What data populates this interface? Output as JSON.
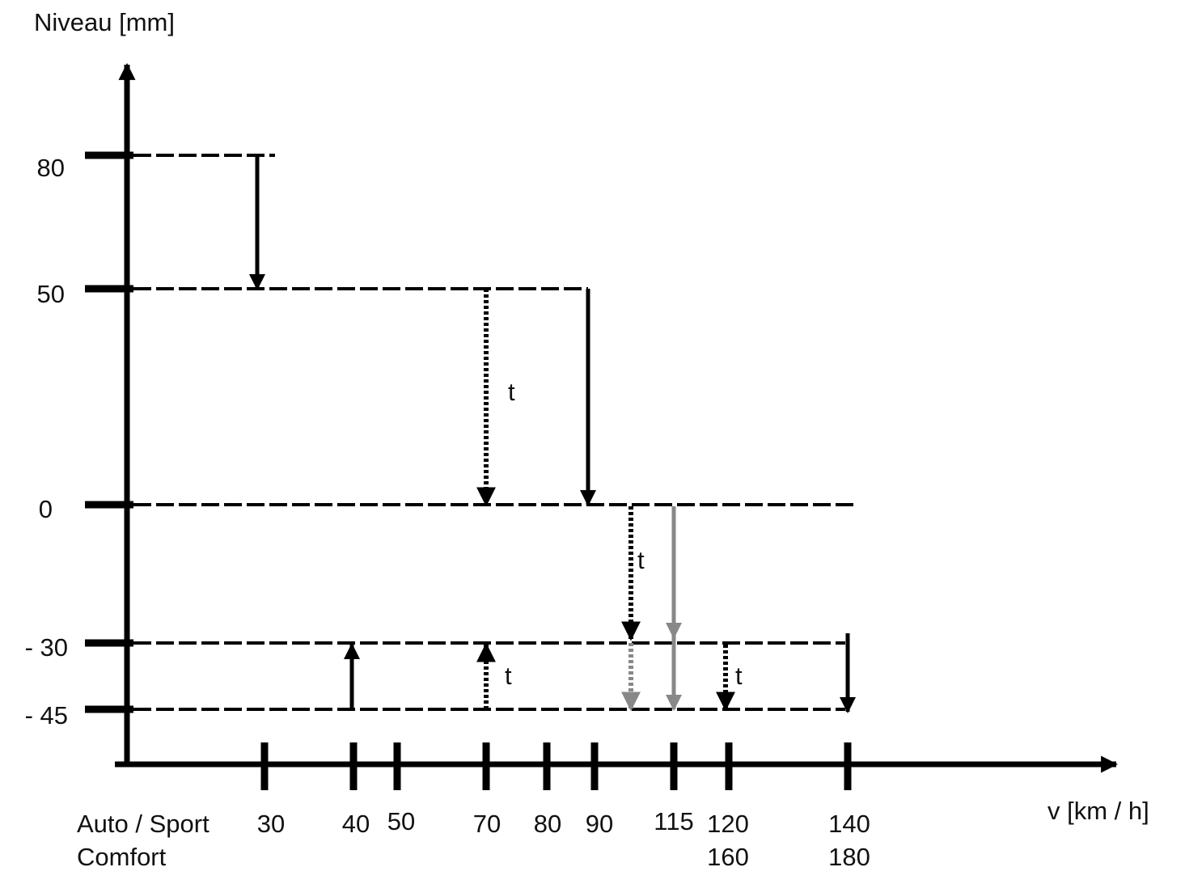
{
  "y_axis": {
    "label": "Niveau [mm]",
    "ticks": [
      "80",
      "50",
      "0",
      "- 30",
      "- 45"
    ]
  },
  "x_axis": {
    "label": "v [km / h]",
    "rows": [
      {
        "name": "Auto / Sport",
        "ticks": [
          "30",
          "40",
          "50",
          "70",
          "80",
          "90",
          "115",
          "120",
          "140"
        ]
      },
      {
        "name": "Comfort",
        "ticks": [
          "160",
          "180"
        ]
      }
    ]
  },
  "annotations": [
    "t",
    "t",
    "t",
    "t"
  ]
}
